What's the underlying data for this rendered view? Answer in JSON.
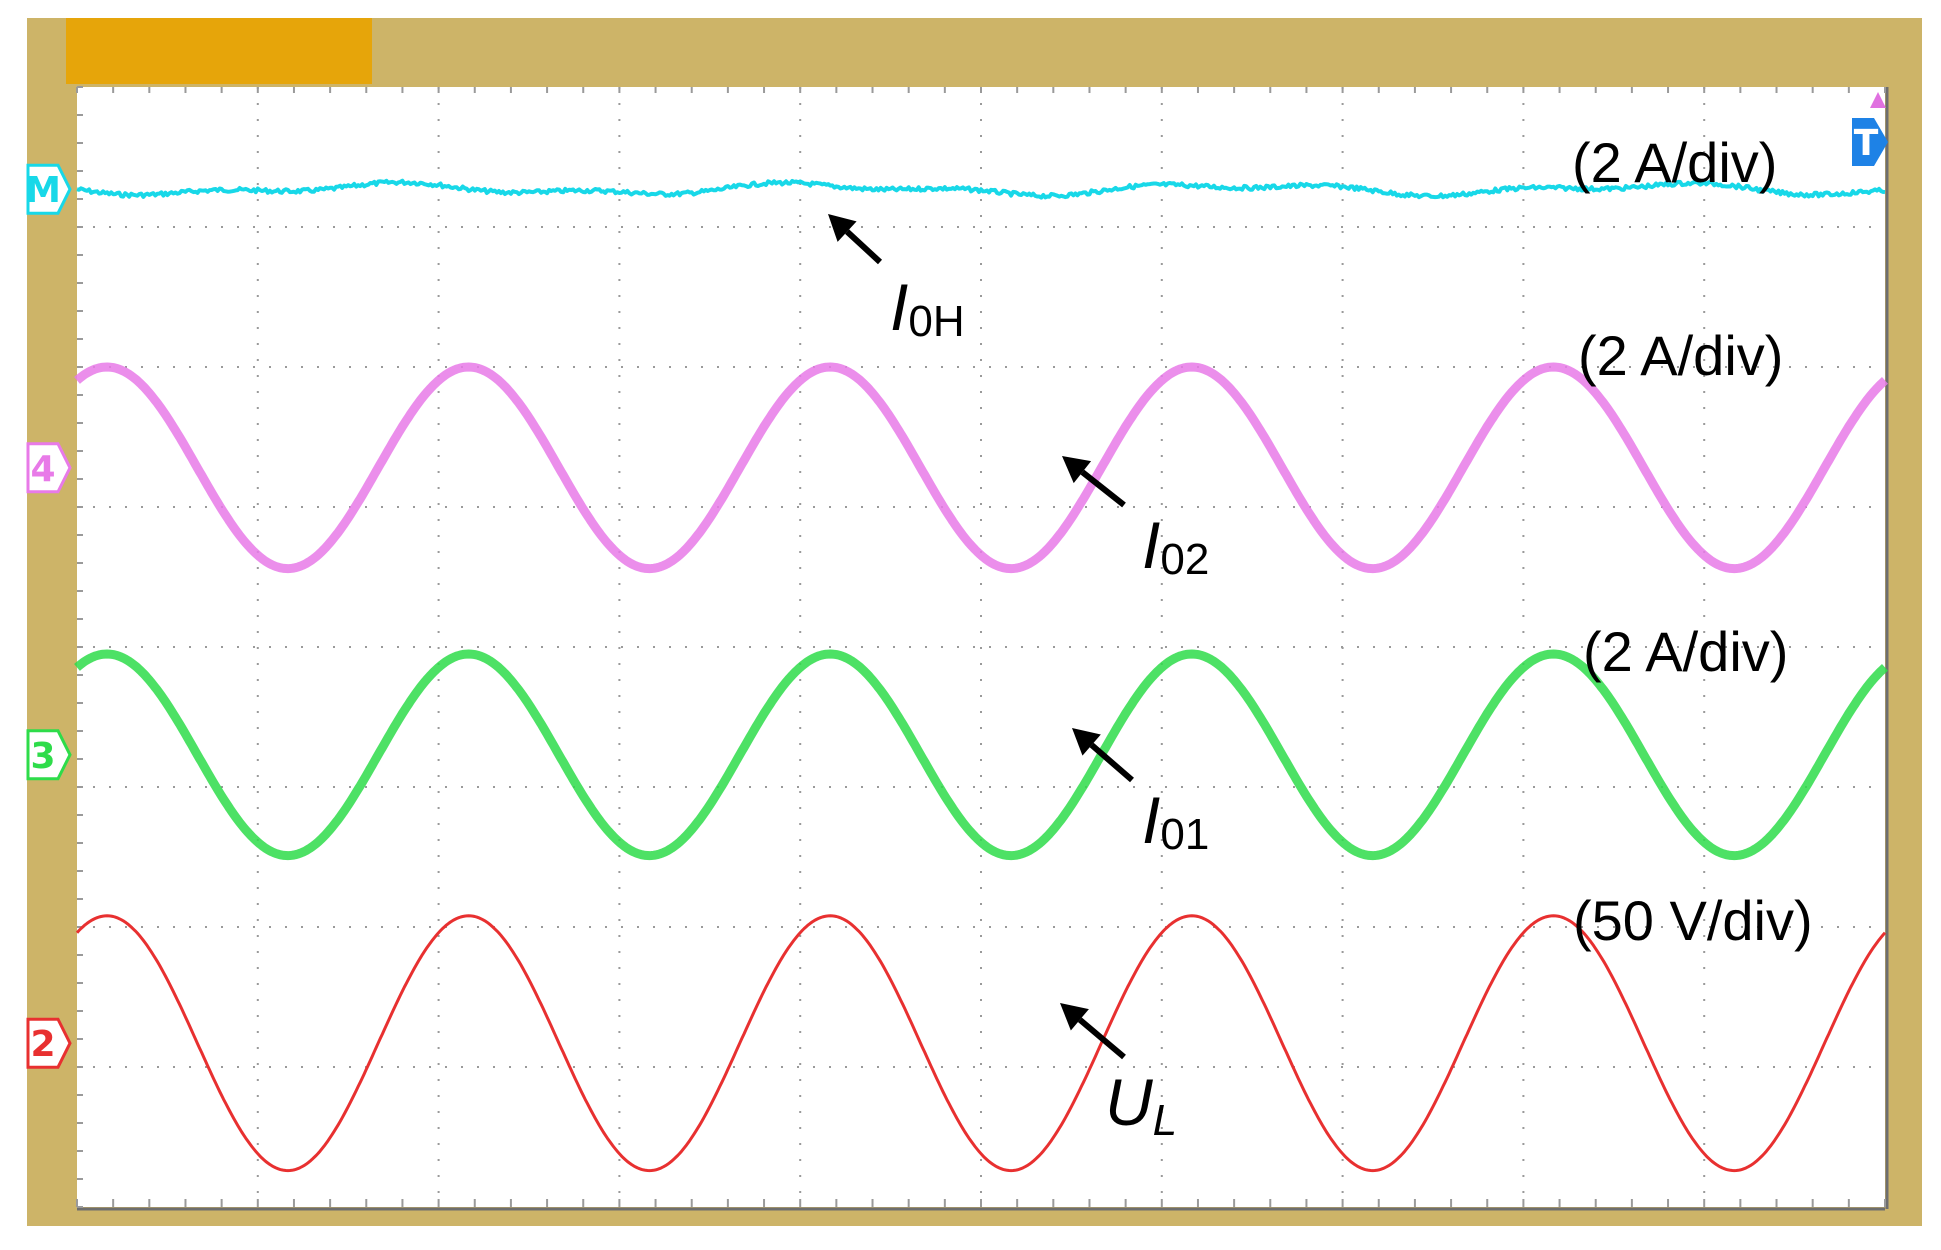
{
  "colors": {
    "frame": "#CDB468",
    "tab": "#E6A50A",
    "grid": "#9A9A9A",
    "background": "#FFFFFF",
    "trigger": "#1E82E6",
    "trigger_arrow": "#E070E0"
  },
  "markers": {
    "math": "M",
    "ch4": "4",
    "ch3": "3",
    "ch2": "2",
    "trigger": "T"
  },
  "chart_data": {
    "type": "line",
    "grid": true,
    "x_divisions": 10,
    "y_divisions": 8,
    "series": [
      {
        "name": "I0H",
        "label_main": "I",
        "label_sub": "0H",
        "sub_italic": false,
        "scale": "(2 A/div)",
        "color": "#18D8E8",
        "marker": "M",
        "waveform": "dc",
        "offset_div": 0.73,
        "amplitude_div": 0.05,
        "stroke": 4
      },
      {
        "name": "I02",
        "label_main": "I",
        "label_sub": "02",
        "sub_italic": false,
        "scale": "(2 A/div)",
        "color": "#E87AE8",
        "marker": "4",
        "waveform": "sine",
        "offset_div": 2.72,
        "amplitude_div": 0.72,
        "periods_in_window": 5,
        "stroke": 9
      },
      {
        "name": "I01",
        "label_main": "I",
        "label_sub": "01",
        "sub_italic": false,
        "scale": "(2 A/div)",
        "color": "#2EDC4A",
        "marker": "3",
        "waveform": "sine",
        "offset_div": 4.77,
        "amplitude_div": 0.72,
        "periods_in_window": 5,
        "stroke": 9
      },
      {
        "name": "UL",
        "label_main": "U",
        "label_sub": "L",
        "sub_italic": true,
        "scale": "(50 V/div)",
        "color": "#E83030",
        "marker": "2",
        "waveform": "sine",
        "offset_div": 6.83,
        "amplitude_div": 0.91,
        "periods_in_window": 5,
        "stroke": 3
      }
    ]
  }
}
